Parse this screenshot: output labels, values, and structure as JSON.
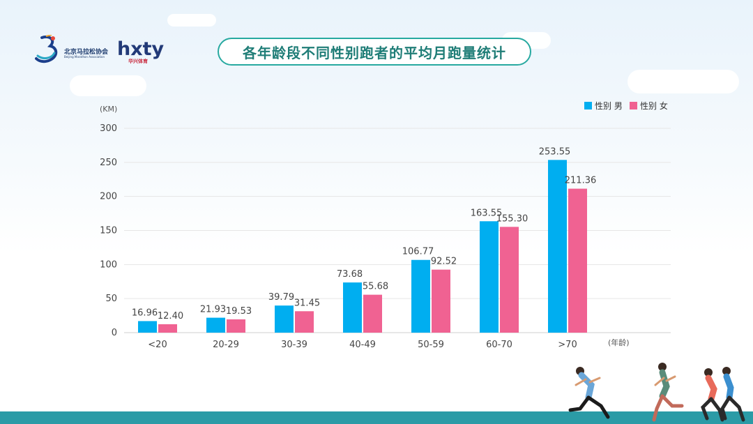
{
  "brand": {
    "association_name": "北京马拉松协会",
    "association_sub": "Beijing Marathon Association",
    "hxty_wordmark": "hxty",
    "hxty_sub": "华兴体育"
  },
  "title": "各年龄段不同性别跑者的平均月跑量统计",
  "chart_data": {
    "type": "bar",
    "title": "各年龄段不同性别跑者的平均月跑量统计",
    "categories": [
      "<20",
      "20-29",
      "30-39",
      "40-49",
      "50-59",
      "60-70",
      ">70"
    ],
    "series": [
      {
        "name": "性别 男",
        "color": "#00aef0",
        "values": [
          16.96,
          21.93,
          39.79,
          73.68,
          106.77,
          163.55,
          253.55
        ],
        "labels": [
          "16.96",
          "21.93",
          "39.79",
          "73.68",
          "106.77",
          "163.55",
          "253.55"
        ]
      },
      {
        "name": "性别 女",
        "color": "#f06292",
        "values": [
          12.4,
          19.53,
          31.45,
          55.68,
          92.52,
          155.3,
          211.36
        ],
        "labels": [
          "12.40",
          "19.53",
          "31.45",
          "55.68",
          "92.52",
          "155.30",
          "211.36"
        ]
      }
    ],
    "y_unit": "(KM)",
    "x_unit": "(年龄)",
    "ylim": [
      0,
      300
    ],
    "yticks": [
      "0",
      "50",
      "100",
      "150",
      "200",
      "250",
      "300"
    ],
    "grid": true,
    "legend_position": "top-right"
  }
}
